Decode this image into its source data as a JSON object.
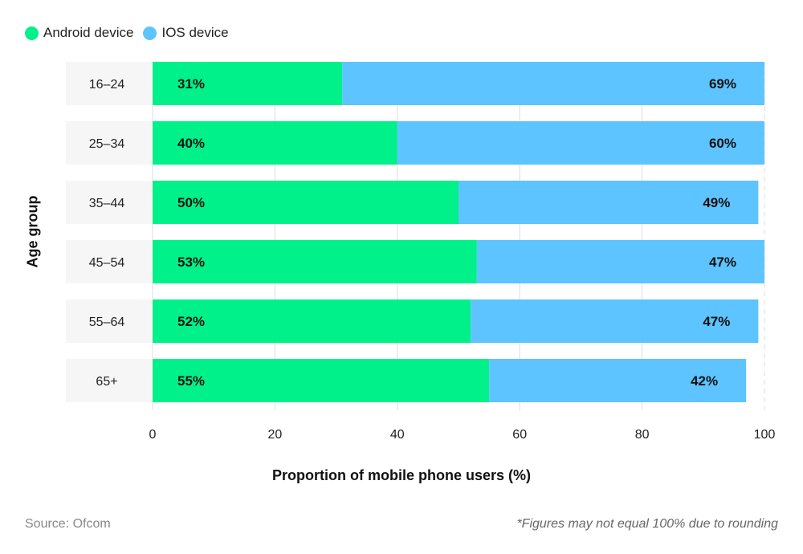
{
  "chart_data": {
    "type": "bar",
    "orientation": "horizontal",
    "stacked": true,
    "categories": [
      "16–24",
      "25–34",
      "35–44",
      "45–54",
      "55–64",
      "65+"
    ],
    "series": [
      {
        "name": "Android device",
        "color": "#00F18A",
        "values": [
          31,
          40,
          50,
          53,
          52,
          55
        ],
        "labels": [
          "31%",
          "40%",
          "50%",
          "53%",
          "52%",
          "55%"
        ]
      },
      {
        "name": "IOS device",
        "color": "#5DC4FF",
        "values": [
          69,
          60,
          49,
          47,
          47,
          42
        ],
        "labels": [
          "69%",
          "60%",
          "49%",
          "47%",
          "47%",
          "42%"
        ]
      }
    ],
    "xlabel": "Proportion of mobile phone users (%)",
    "ylabel": "Age group",
    "xlim": [
      0,
      100
    ],
    "xticks": [
      "0",
      "20",
      "40",
      "60",
      "80",
      "100"
    ],
    "grid": true,
    "legend": "top-left"
  },
  "footer": {
    "source": "Source: Ofcom",
    "note": "*Figures may not equal 100% due to rounding"
  }
}
